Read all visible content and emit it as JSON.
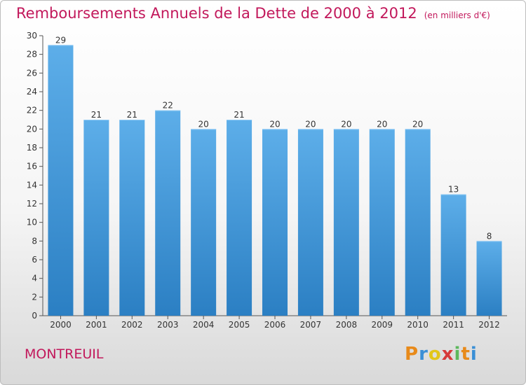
{
  "title": "Remboursements Annuels de la Dette de 2000 à 2012",
  "unit": "(en milliers d'€)",
  "commune": "MONTREUIL",
  "brand": {
    "text": "Proxiti",
    "letters": [
      "P",
      "r",
      "o",
      "x",
      "i",
      "t",
      "i"
    ],
    "colors": [
      "#e88a1a",
      "#3a8fd6",
      "#e2c61a",
      "#d63a3a",
      "#5cb85c",
      "#e88a1a",
      "#3a8fd6"
    ]
  },
  "colors": {
    "title": "#c2185b",
    "bar_top": "#5daee9",
    "bar_bottom": "#2b7fc3"
  },
  "chart_data": {
    "type": "bar",
    "title": "Remboursements Annuels de la Dette de 2000 à 2012",
    "xlabel": "",
    "ylabel": "",
    "categories": [
      "2000",
      "2001",
      "2002",
      "2003",
      "2004",
      "2005",
      "2006",
      "2007",
      "2008",
      "2009",
      "2010",
      "2011",
      "2012"
    ],
    "values": [
      29,
      21,
      21,
      22,
      20,
      21,
      20,
      20,
      20,
      20,
      20,
      13,
      8
    ],
    "ylim": [
      0,
      30
    ],
    "yticks": [
      0,
      2,
      4,
      6,
      8,
      10,
      12,
      14,
      16,
      18,
      20,
      22,
      24,
      26,
      28,
      30
    ],
    "grid": false,
    "legend": "none"
  }
}
